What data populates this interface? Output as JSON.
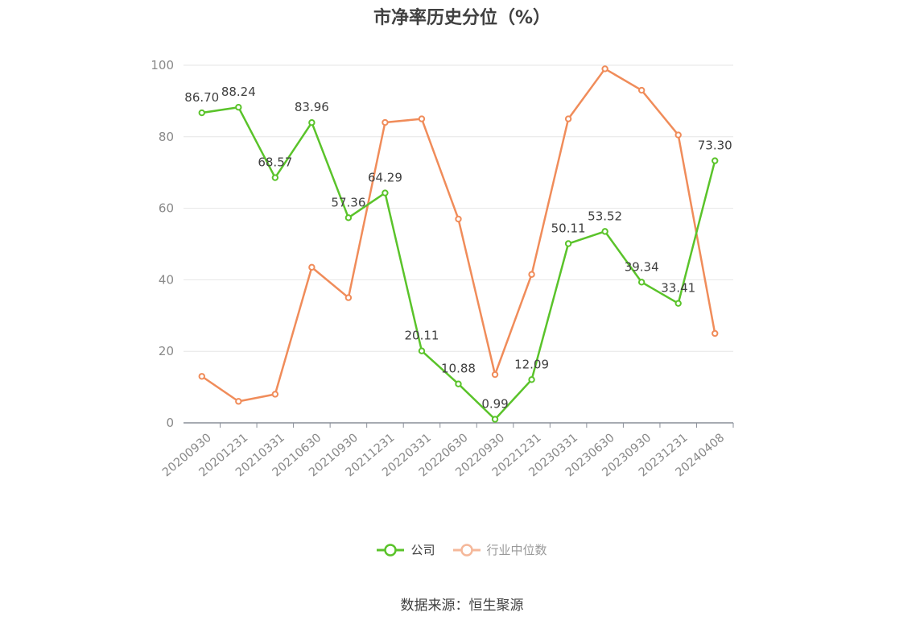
{
  "title": "市净率历史分位（%）",
  "source": "数据来源：恒生聚源",
  "colors": {
    "company": "#5ac32a",
    "industry": "#f08c5a",
    "industry_legend": "#f5b89a",
    "grid": "#e6e6e6",
    "axis": "#8a8f99"
  },
  "legend": [
    {
      "name": "公司",
      "key": "company"
    },
    {
      "name": "行业中位数",
      "key": "industry"
    }
  ],
  "chart_data": {
    "type": "line",
    "title": "市净率历史分位（%）",
    "categories": [
      "20200930",
      "20201231",
      "20210331",
      "20210630",
      "20210930",
      "20211231",
      "20220331",
      "20220630",
      "20220930",
      "20221231",
      "20230331",
      "20230630",
      "20230930",
      "20231231",
      "20240408"
    ],
    "ylim": [
      0,
      100
    ],
    "yticks": [
      0,
      20,
      40,
      60,
      80,
      100
    ],
    "grid": true,
    "legend_position": "bottom",
    "series": [
      {
        "name": "公司",
        "key": "company",
        "values": [
          86.7,
          88.24,
          68.57,
          83.96,
          57.36,
          64.29,
          20.11,
          10.88,
          0.99,
          12.09,
          50.11,
          53.52,
          39.34,
          33.41,
          73.3
        ],
        "labels": [
          "86.70",
          "88.24",
          "68.57",
          "83.96",
          "57.36",
          "64.29",
          "20.11",
          "10.88",
          "0.99",
          "12.09",
          "50.11",
          "53.52",
          "39.34",
          "33.41",
          "73.30"
        ]
      },
      {
        "name": "行业中位数",
        "key": "industry",
        "values": [
          13,
          6,
          8,
          43.5,
          35,
          84,
          85,
          57,
          13.5,
          41.5,
          85,
          99,
          93,
          80.5,
          25
        ]
      }
    ]
  }
}
